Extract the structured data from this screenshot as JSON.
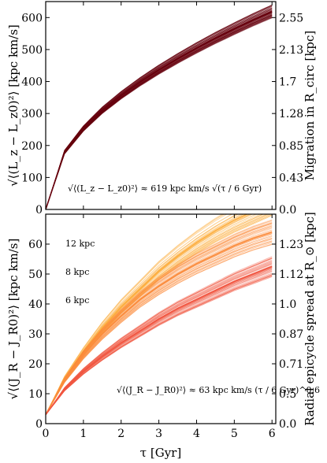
{
  "chart_data": [
    {
      "type": "line",
      "xlabel": "τ [Gyr]",
      "ylabel": "√⟨(L_z − L_z0)²⟩ [kpc km/s]",
      "ylabel_right": "Migration in R_circ [kpc]",
      "xlim": [
        0,
        6.1
      ],
      "ylim": [
        0,
        650
      ],
      "x_ticks": [
        "0",
        "1",
        "2",
        "3",
        "4",
        "5",
        "6"
      ],
      "y_ticks": [
        "0",
        "100",
        "200",
        "300",
        "400",
        "500",
        "600"
      ],
      "y_ticks_right": [
        "0.0",
        "0.43",
        "0.85",
        "1.28",
        "1.7",
        "2.13",
        "2.55"
      ],
      "annotation": "√⟨(L_z − L_z0)²⟩ ≈ 619 kpc km/s √(τ / 6 Gyr)",
      "series": [
        {
          "color": "#67000d",
          "x": [
            0.0,
            0.5,
            1.0,
            1.5,
            2.0,
            2.5,
            3.0,
            3.5,
            4.0,
            4.5,
            5.0,
            5.5,
            6.0
          ],
          "values": [
            0,
            179,
            253,
            310,
            357,
            399,
            437,
            472,
            505,
            536,
            565,
            593,
            619
          ]
        }
      ]
    },
    {
      "type": "line",
      "xlabel": "τ [Gyr]",
      "ylabel": "√⟨(J_R − J_R0)²⟩ [kpc km/s]",
      "ylabel_right": "Radial epicycle spread at R_⊙ [kpc]",
      "xlim": [
        0,
        6.1
      ],
      "ylim": [
        0,
        70
      ],
      "x_ticks": [
        "0",
        "1",
        "2",
        "3",
        "4",
        "5",
        "6"
      ],
      "y_ticks": [
        "0",
        "10",
        "20",
        "30",
        "40",
        "50",
        "60"
      ],
      "y_ticks_right": [
        "0.0",
        "0.5",
        "0.71",
        "0.87",
        "1.0",
        "1.12",
        "1.23"
      ],
      "annotation": "√⟨(J_R − J_R0)²⟩ ≈ 63 kpc km/s (τ / 6 Gyr)^0.6",
      "series": [
        {
          "name": "12 kpc",
          "color": "#fdae3f",
          "x": [
            0.0,
            0.5,
            1.0,
            1.5,
            2.0,
            2.5,
            3.0,
            3.5,
            4.0,
            4.5,
            5.0,
            5.5,
            6.0
          ],
          "values": [
            3,
            15,
            24,
            32,
            39,
            45,
            51,
            56,
            60.5,
            64.5,
            68,
            71,
            74
          ]
        },
        {
          "name": "8 kpc",
          "color": "#fb8c3c",
          "x": [
            0.0,
            0.5,
            1.0,
            1.5,
            2.0,
            2.5,
            3.0,
            3.5,
            4.0,
            4.5,
            5.0,
            5.5,
            6.0
          ],
          "values": [
            3,
            14.5,
            23,
            30,
            36,
            41.5,
            46,
            50,
            53.5,
            56.5,
            59.5,
            62,
            64
          ]
        },
        {
          "name": "6 kpc",
          "color": "#f15540",
          "x": [
            0.0,
            0.5,
            1.0,
            1.5,
            2.0,
            2.5,
            3.0,
            3.5,
            4.0,
            4.5,
            5.0,
            5.5,
            6.0
          ],
          "values": [
            3,
            11.5,
            17.5,
            22.5,
            27,
            31,
            35,
            38.5,
            41.5,
            44.5,
            47.5,
            50,
            52.5
          ]
        }
      ]
    }
  ]
}
